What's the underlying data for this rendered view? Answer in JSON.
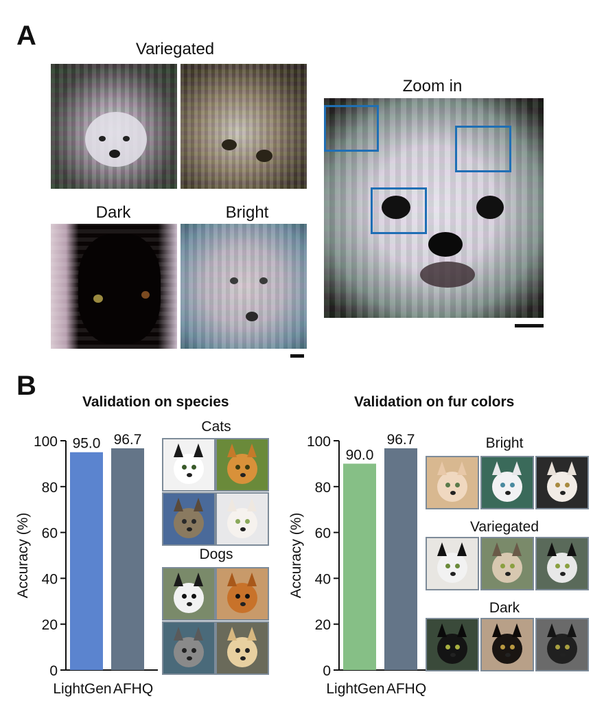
{
  "panel_a": {
    "letter": "A",
    "label_variegated": "Variegated",
    "label_dark": "Dark",
    "label_bright": "Bright",
    "label_zoom": "Zoom in"
  },
  "panel_b": {
    "letter": "B",
    "label_cats": "Cats",
    "label_dogs": "Dogs",
    "label_bright": "Bright",
    "label_variegated": "Variegated",
    "label_dark": "Dark"
  },
  "chart_data": [
    {
      "type": "bar",
      "title": "Validation on species",
      "ylabel": "Accuracy (%)",
      "xlabel": "",
      "categories": [
        "LightGen",
        "AFHQ"
      ],
      "values": [
        95.0,
        96.7
      ],
      "value_labels": [
        "95.0",
        "96.7"
      ],
      "colors": [
        "#5b84cf",
        "#647588"
      ],
      "ylim": [
        0,
        100
      ],
      "yticks": [
        0,
        20,
        40,
        60,
        80,
        100
      ],
      "grid": false,
      "legend": "none"
    },
    {
      "type": "bar",
      "title": "Validation on fur colors",
      "ylabel": "Accuracy (%)",
      "xlabel": "",
      "categories": [
        "LightGen",
        "AFHQ"
      ],
      "values": [
        90.0,
        96.7
      ],
      "value_labels": [
        "90.0",
        "96.7"
      ],
      "colors": [
        "#86bf86",
        "#647588"
      ],
      "ylim": [
        0,
        100
      ],
      "yticks": [
        0,
        20,
        40,
        60,
        80,
        100
      ],
      "grid": false,
      "legend": "none"
    }
  ]
}
